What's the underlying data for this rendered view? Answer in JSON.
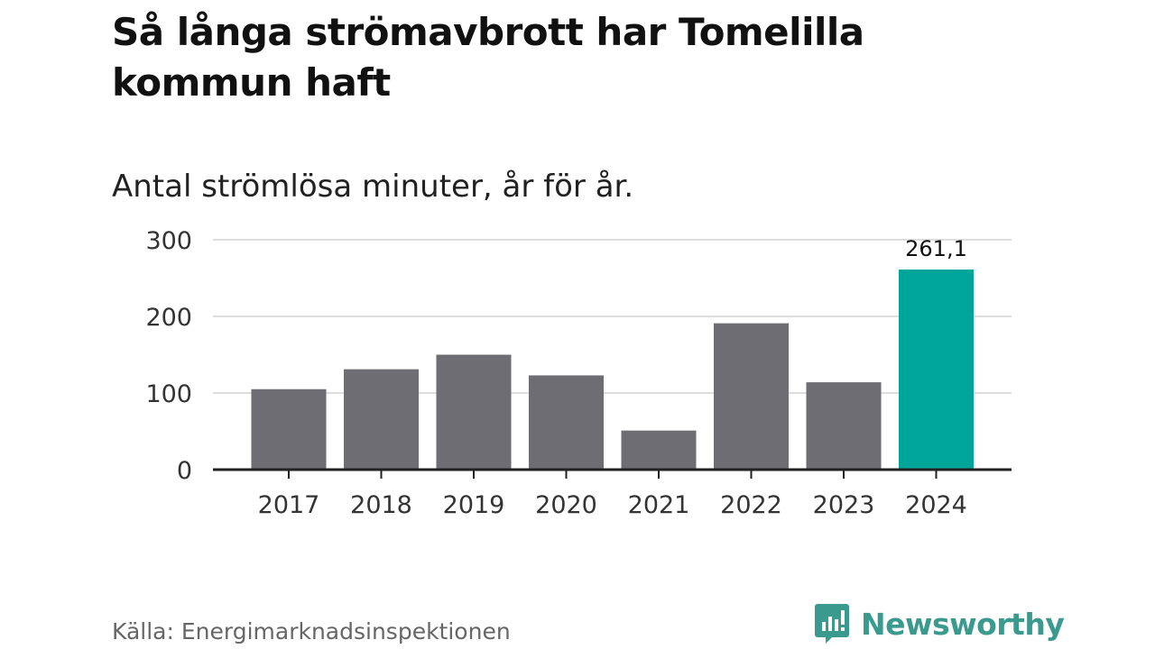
{
  "title": "Så långa strömavbrott har Tomelilla kommun haft",
  "subtitle": "Antal strömlösa minuter, år för år.",
  "source": "Källa: Energimarknadsinspektionen",
  "brand": {
    "name": "Newsworthy",
    "icon": "newsworthy-logo-icon"
  },
  "colors": {
    "bar": "#6e6d73",
    "highlight": "#00a599",
    "grid": "#dddddd",
    "axis": "#222222",
    "brand": "#3a9a8d"
  },
  "chart_data": {
    "type": "bar",
    "title": "Så långa strömavbrott har Tomelilla kommun haft",
    "subtitle": "Antal strömlösa minuter, år för år.",
    "xlabel": "",
    "ylabel": "",
    "categories": [
      "2017",
      "2018",
      "2019",
      "2020",
      "2021",
      "2022",
      "2023",
      "2024"
    ],
    "values": [
      105,
      131,
      150,
      123,
      51,
      191,
      114,
      261.1
    ],
    "highlight_index": 7,
    "data_labels": [
      {
        "index": 7,
        "text": "261,1"
      }
    ],
    "ylim": [
      0,
      300
    ],
    "yticks": [
      0,
      100,
      200,
      300
    ],
    "ytick_labels": [
      "0",
      "100",
      "200",
      "300"
    ],
    "grid": true,
    "legend": "none"
  }
}
